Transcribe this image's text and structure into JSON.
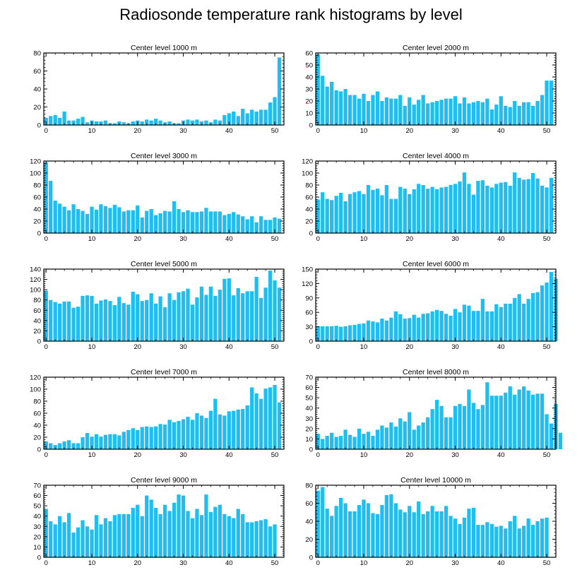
{
  "title": "Radiosonde temperature rank histograms by level",
  "style": {
    "bar_color": "#1EBFF0",
    "axis_color": "#000000"
  },
  "chart_data": [
    {
      "type": "bar",
      "title": "Center level 1000 m",
      "xlabel": "",
      "ylabel": "",
      "xlim": [
        -0.5,
        52
      ],
      "ylim": [
        0,
        80
      ],
      "xticks": [
        0,
        10,
        20,
        30,
        40,
        50
      ],
      "yticks": [
        0,
        20,
        40,
        60,
        80
      ],
      "values": [
        8,
        10,
        11,
        8,
        15,
        5,
        5,
        7,
        9,
        3,
        5,
        4,
        4,
        5,
        2,
        2,
        4,
        3,
        2,
        4,
        5,
        4,
        6,
        5,
        7,
        5,
        3,
        4,
        2,
        2,
        5,
        6,
        5,
        6,
        4,
        5,
        3,
        6,
        5,
        11,
        13,
        15,
        10,
        18,
        13,
        17,
        15,
        17,
        17,
        25,
        31,
        75
      ]
    },
    {
      "type": "bar",
      "title": "Center level 2000 m",
      "xlabel": "",
      "ylabel": "",
      "xlim": [
        -0.5,
        52
      ],
      "ylim": [
        0,
        60
      ],
      "xticks": [
        0,
        10,
        20,
        30,
        40,
        50
      ],
      "yticks": [
        0,
        10,
        20,
        30,
        40,
        50,
        60
      ],
      "values": [
        59,
        41,
        32,
        36,
        29,
        28,
        30,
        25,
        25,
        22,
        26,
        20,
        25,
        28,
        20,
        23,
        22,
        22,
        25,
        16,
        23,
        17,
        21,
        25,
        18,
        19,
        20,
        21,
        22,
        22,
        24,
        18,
        23,
        18,
        19,
        20,
        19,
        22,
        13,
        17,
        24,
        16,
        15,
        20,
        16,
        19,
        19,
        16,
        20,
        25,
        37,
        37
      ]
    },
    {
      "type": "bar",
      "title": "Center level 3000 m",
      "xlabel": "",
      "ylabel": "",
      "xlim": [
        -0.5,
        52
      ],
      "ylim": [
        0,
        120
      ],
      "xticks": [
        0,
        10,
        20,
        30,
        40,
        50
      ],
      "yticks": [
        0,
        20,
        40,
        60,
        80,
        100,
        120
      ],
      "values": [
        118,
        87,
        54,
        49,
        44,
        38,
        48,
        40,
        37,
        32,
        44,
        39,
        48,
        45,
        42,
        47,
        43,
        36,
        38,
        38,
        46,
        26,
        37,
        40,
        30,
        33,
        37,
        36,
        53,
        40,
        35,
        38,
        35,
        35,
        36,
        42,
        36,
        36,
        36,
        30,
        32,
        35,
        31,
        28,
        23,
        28,
        18,
        28,
        22,
        22,
        26,
        24
      ]
    },
    {
      "type": "bar",
      "title": "Center level 4000 m",
      "xlabel": "",
      "ylabel": "",
      "xlim": [
        -0.5,
        52
      ],
      "ylim": [
        0,
        120
      ],
      "xticks": [
        0,
        10,
        20,
        30,
        40,
        50
      ],
      "yticks": [
        0,
        20,
        40,
        60,
        80,
        100,
        120
      ],
      "values": [
        56,
        68,
        57,
        55,
        62,
        67,
        53,
        65,
        68,
        70,
        65,
        80,
        72,
        74,
        63,
        80,
        57,
        57,
        77,
        74,
        65,
        73,
        82,
        80,
        74,
        77,
        73,
        76,
        77,
        80,
        82,
        86,
        101,
        82,
        64,
        87,
        88,
        79,
        76,
        82,
        84,
        85,
        79,
        101,
        92,
        89,
        90,
        100,
        91,
        79,
        76,
        92
      ]
    },
    {
      "type": "bar",
      "title": "Center level 5000 m",
      "xlabel": "",
      "ylabel": "",
      "xlim": [
        -0.5,
        52
      ],
      "ylim": [
        0,
        140
      ],
      "xticks": [
        0,
        10,
        20,
        30,
        40,
        50
      ],
      "yticks": [
        0,
        20,
        40,
        60,
        80,
        100,
        120,
        140
      ],
      "values": [
        98,
        80,
        76,
        73,
        77,
        77,
        65,
        67,
        88,
        89,
        88,
        73,
        79,
        81,
        78,
        70,
        86,
        74,
        71,
        96,
        91,
        78,
        80,
        93,
        73,
        87,
        66,
        93,
        80,
        95,
        97,
        102,
        71,
        85,
        106,
        90,
        106,
        88,
        100,
        121,
        122,
        89,
        103,
        93,
        97,
        97,
        125,
        84,
        104,
        137,
        118,
        104
      ]
    },
    {
      "type": "bar",
      "title": "Center level 6000 m",
      "xlabel": "",
      "ylabel": "",
      "xlim": [
        -0.5,
        52
      ],
      "ylim": [
        0,
        150
      ],
      "xticks": [
        0,
        10,
        20,
        30,
        40,
        50
      ],
      "yticks": [
        0,
        30,
        60,
        90,
        120,
        150
      ],
      "values": [
        31,
        31,
        31,
        31,
        32,
        30,
        31,
        33,
        34,
        36,
        37,
        43,
        41,
        39,
        47,
        43,
        49,
        62,
        56,
        47,
        48,
        55,
        49,
        57,
        58,
        62,
        65,
        63,
        57,
        53,
        67,
        60,
        76,
        74,
        63,
        63,
        88,
        62,
        62,
        77,
        71,
        78,
        78,
        90,
        98,
        78,
        88,
        100,
        102,
        116,
        122,
        144,
        130
      ]
    },
    {
      "type": "bar",
      "title": "Center level 7000 m",
      "xlabel": "",
      "ylabel": "",
      "xlim": [
        -0.5,
        52
      ],
      "ylim": [
        0,
        120
      ],
      "xticks": [
        0,
        10,
        20,
        30,
        40,
        50
      ],
      "yticks": [
        0,
        20,
        40,
        60,
        80,
        100,
        120
      ],
      "values": [
        13,
        10,
        7,
        10,
        13,
        15,
        10,
        10,
        20,
        27,
        21,
        25,
        21,
        24,
        25,
        25,
        23,
        29,
        32,
        35,
        32,
        37,
        38,
        37,
        38,
        42,
        41,
        49,
        45,
        47,
        50,
        54,
        49,
        60,
        56,
        52,
        64,
        84,
        58,
        56,
        63,
        64,
        66,
        67,
        73,
        103,
        93,
        84,
        101,
        103,
        107,
        78
      ]
    },
    {
      "type": "bar",
      "title": "Center level 8000 m",
      "xlabel": "",
      "ylabel": "",
      "xlim": [
        -0.5,
        52
      ],
      "ylim": [
        0,
        70
      ],
      "xticks": [
        0,
        10,
        20,
        30,
        40,
        50
      ],
      "yticks": [
        0,
        10,
        20,
        30,
        40,
        50,
        60,
        70
      ],
      "values": [
        15,
        10,
        13,
        16,
        12,
        13,
        19,
        14,
        12,
        20,
        15,
        17,
        13,
        19,
        23,
        21,
        26,
        22,
        30,
        27,
        36,
        19,
        23,
        26,
        31,
        39,
        48,
        42,
        31,
        31,
        42,
        44,
        42,
        58,
        45,
        39,
        43,
        65,
        52,
        52,
        52,
        55,
        61,
        53,
        58,
        61,
        57,
        53,
        54,
        54,
        34,
        25,
        44,
        16
      ]
    },
    {
      "type": "bar",
      "title": "Center level 9000 m",
      "xlabel": "",
      "ylabel": "",
      "xlim": [
        -0.5,
        52
      ],
      "ylim": [
        0,
        70
      ],
      "xticks": [
        0,
        10,
        20,
        30,
        40,
        50
      ],
      "yticks": [
        0,
        10,
        20,
        30,
        40,
        50,
        60,
        70
      ],
      "values": [
        47,
        35,
        32,
        40,
        34,
        43,
        24,
        29,
        36,
        30,
        27,
        41,
        32,
        38,
        35,
        41,
        42,
        42,
        42,
        48,
        51,
        40,
        60,
        56,
        48,
        42,
        51,
        45,
        53,
        61,
        60,
        45,
        38,
        47,
        41,
        61,
        44,
        49,
        51,
        42,
        40,
        38,
        47,
        42,
        34,
        34,
        35,
        36,
        37,
        30,
        32
      ]
    },
    {
      "type": "bar",
      "title": "Center level 10000 m",
      "xlabel": "",
      "ylabel": "",
      "xlim": [
        -0.5,
        52
      ],
      "ylim": [
        0,
        80
      ],
      "xticks": [
        0,
        10,
        20,
        30,
        40,
        50
      ],
      "yticks": [
        0,
        20,
        40,
        60,
        80
      ],
      "values": [
        74,
        78,
        54,
        46,
        57,
        66,
        60,
        51,
        51,
        58,
        64,
        60,
        49,
        48,
        58,
        69,
        70,
        60,
        53,
        50,
        57,
        50,
        62,
        48,
        51,
        57,
        51,
        51,
        57,
        46,
        43,
        37,
        44,
        54,
        55,
        36,
        36,
        39,
        37,
        34,
        35,
        32,
        40,
        46,
        32,
        35,
        43,
        36,
        40,
        43,
        44
      ]
    }
  ]
}
